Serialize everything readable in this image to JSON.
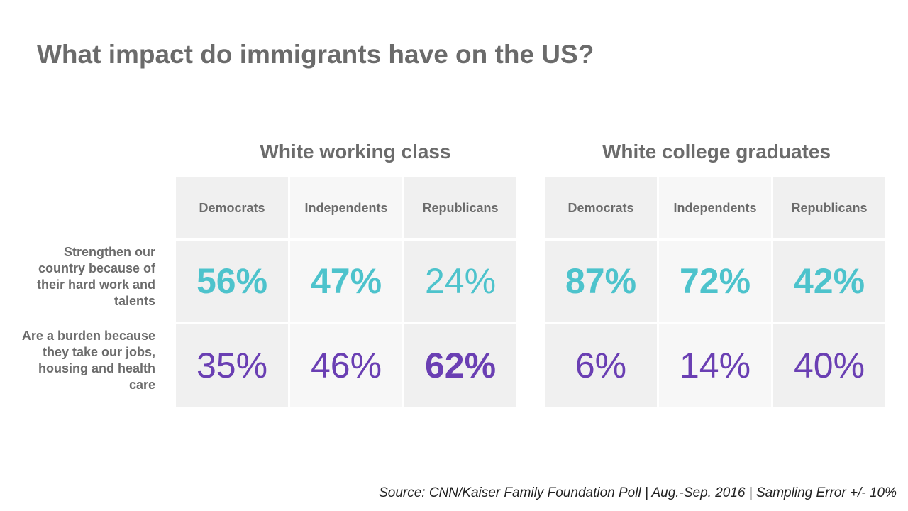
{
  "title": "What impact do immigrants have on the US?",
  "source": "Source: CNN/Kaiser Family Foundation Poll | Aug.-Sep. 2016 | Sampling Error +/- 10%",
  "colors": {
    "positive": "#4dc3cc",
    "negative": "#6a3fb3",
    "text": "#6b6b6b",
    "cell_bg": "#f0f0f0",
    "cell_bg_alt": "#f7f7f7"
  },
  "chart_data": {
    "type": "table",
    "title": "What impact do immigrants have on the US?",
    "row_labels": [
      "Strengthen our country because of their hard work and talents",
      "Are a burden because they take our jobs, housing and health care"
    ],
    "groups": [
      {
        "name": "White working class",
        "columns": [
          "Democrats",
          "Independents",
          "Republicans"
        ],
        "rows": [
          {
            "values": [
              "56%",
              "47%",
              "24%"
            ],
            "highlight": [
              true,
              true,
              false
            ]
          },
          {
            "values": [
              "35%",
              "46%",
              "62%"
            ],
            "highlight": [
              false,
              false,
              true
            ]
          }
        ]
      },
      {
        "name": "White college graduates",
        "columns": [
          "Democrats",
          "Independents",
          "Republicans"
        ],
        "rows": [
          {
            "values": [
              "87%",
              "72%",
              "42%"
            ],
            "highlight": [
              true,
              true,
              true
            ]
          },
          {
            "values": [
              "6%",
              "14%",
              "40%"
            ],
            "highlight": [
              false,
              false,
              false
            ]
          }
        ]
      }
    ]
  }
}
